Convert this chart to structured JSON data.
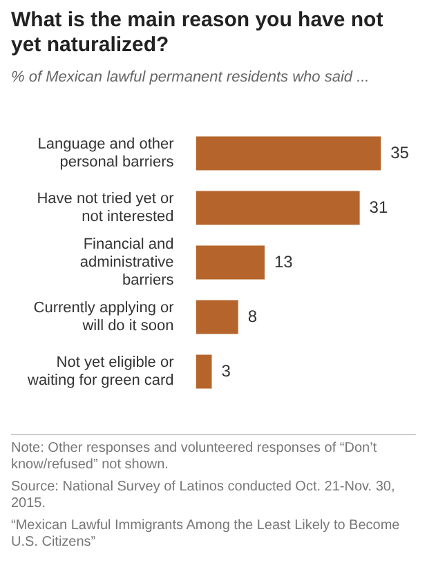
{
  "chart_data": {
    "type": "bar",
    "orientation": "horizontal",
    "title": "What is the main reason you have not yet naturalized?",
    "subtitle": "% of Mexican lawful permanent residents who said ...",
    "categories": [
      "Language and other personal barriers",
      "Have not tried yet or not interested",
      "Financial and administrative barriers",
      "Currently applying or will do it soon",
      "Not yet eligible or waiting for green card"
    ],
    "values": [
      35,
      31,
      13,
      8,
      3
    ],
    "color": "#b5652b",
    "data_labels": true,
    "legend": false,
    "grid": false,
    "annotations": [
      "Note: Other responses and volunteered responses of “Don’t know/refused” not shown.",
      "Source: National Survey of Latinos conducted Oct. 21-Nov. 30, 2015.",
      "“Mexican Lawful Immigrants Among the Least Likely to Become U.S. Citizens”"
    ]
  }
}
